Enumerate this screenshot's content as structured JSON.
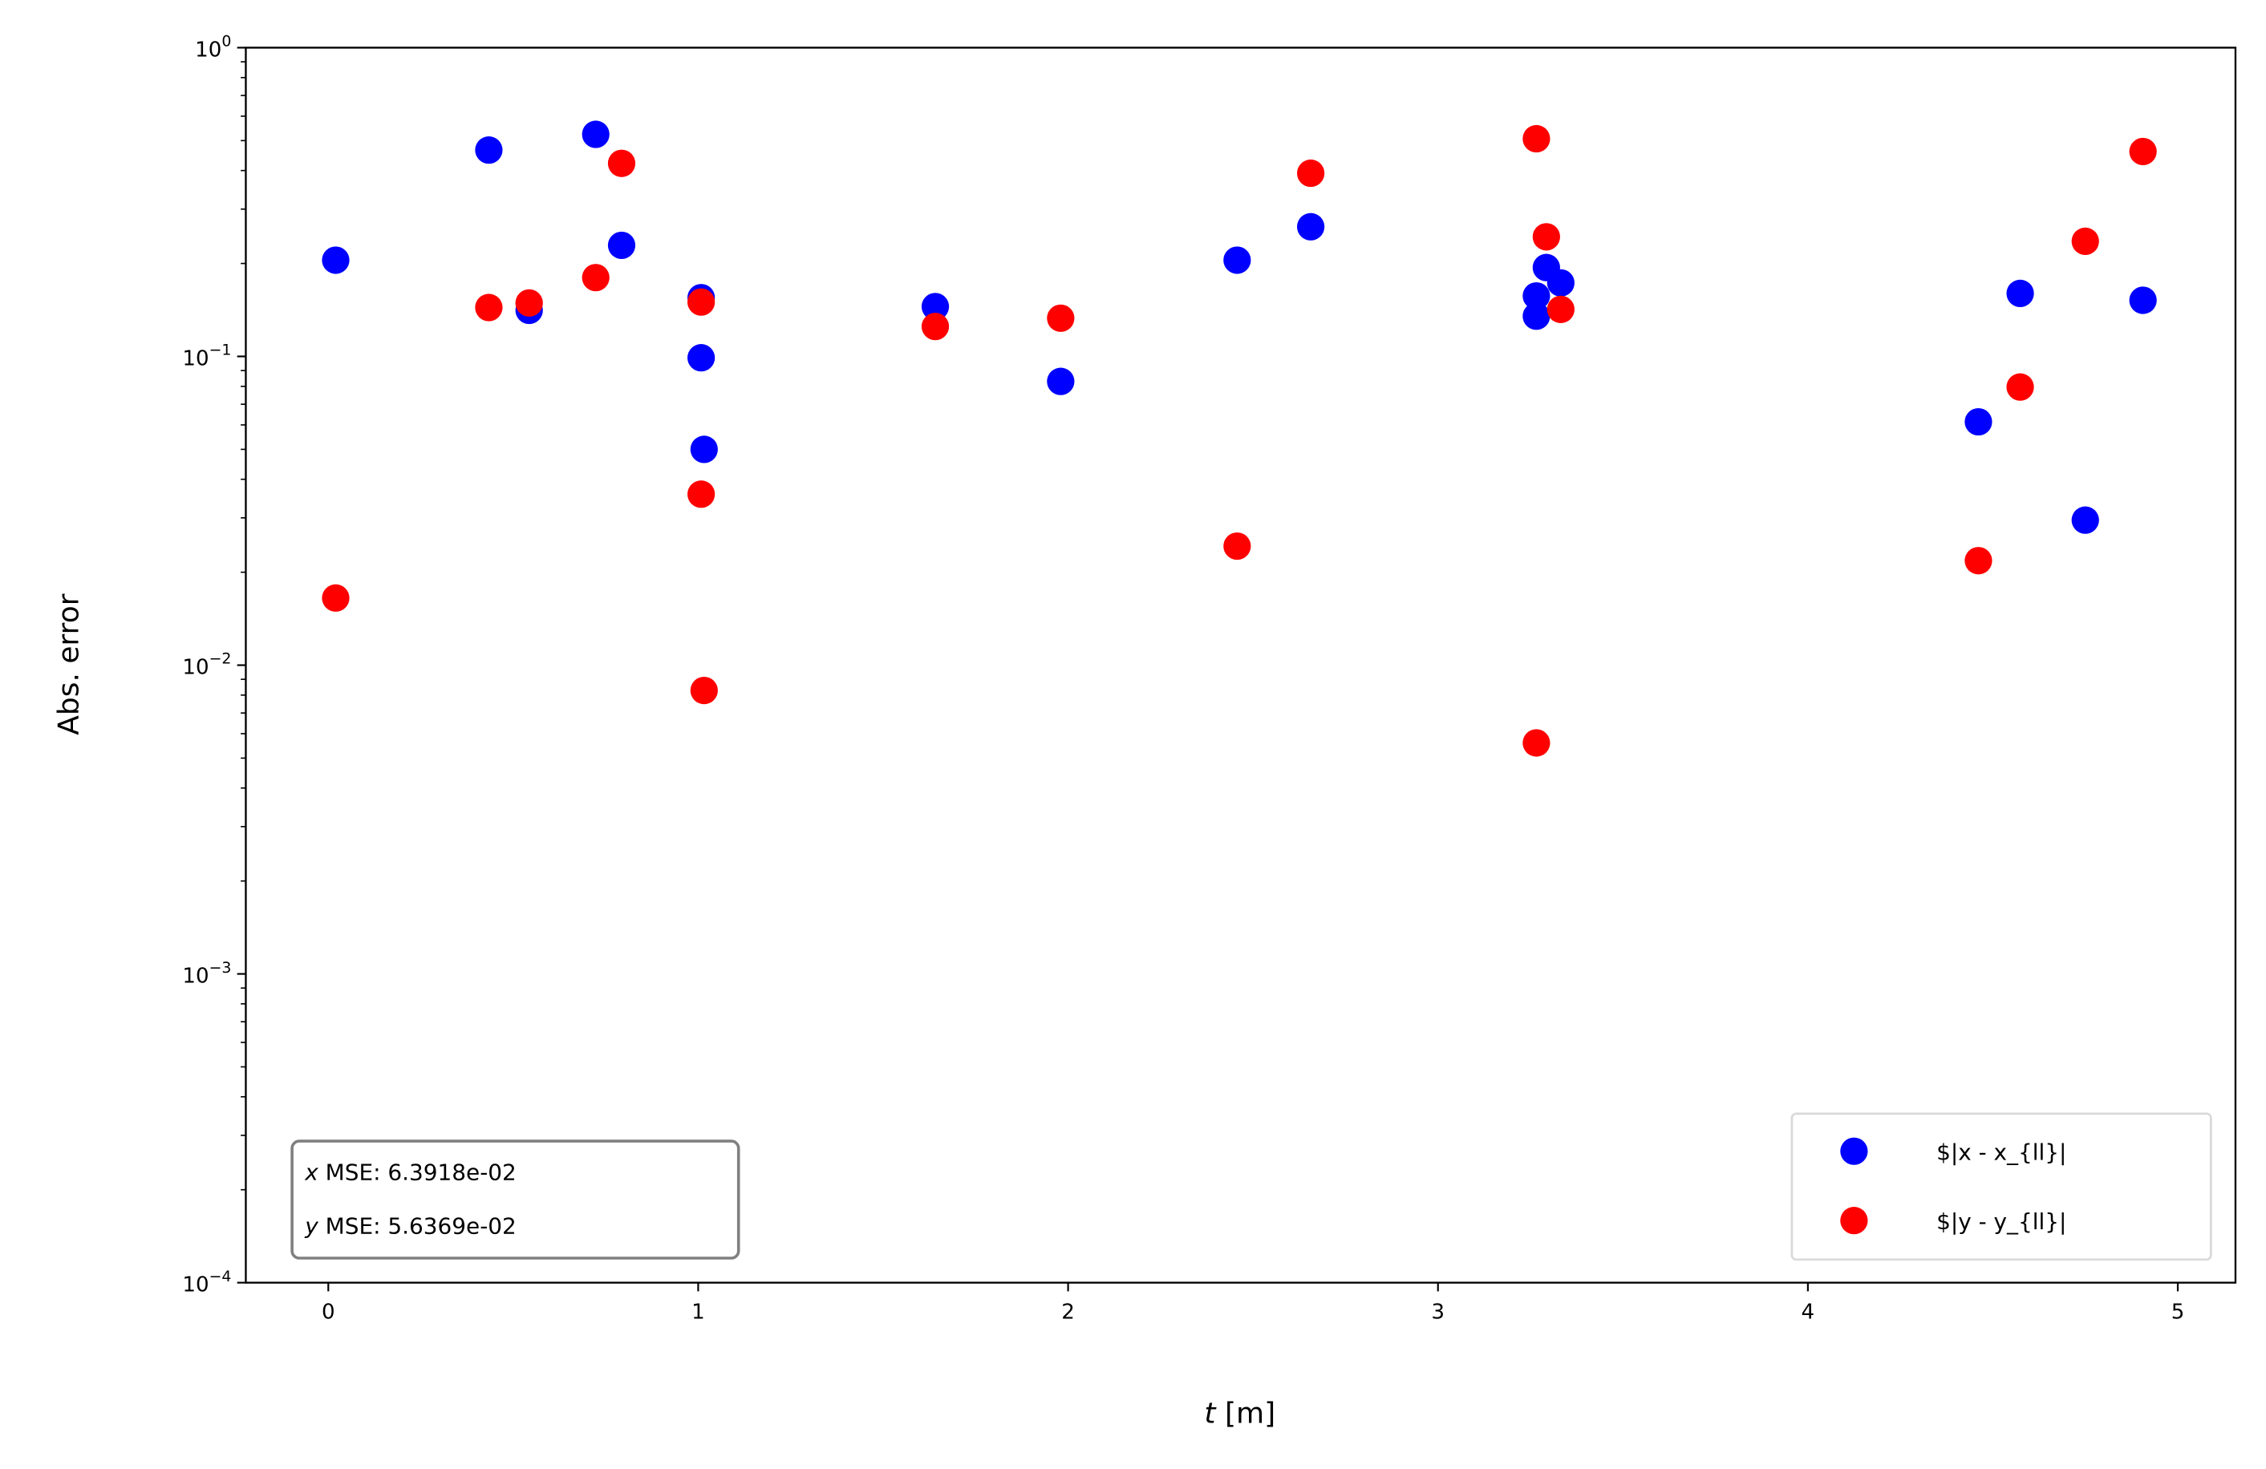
{
  "chart_data": {
    "type": "scatter",
    "title": "",
    "xlabel_var": "t",
    "xlabel_unit": " [m]",
    "ylabel": "Abs. error",
    "xlim": [
      -0.223,
      5.156
    ],
    "ylim": [
      0.0001,
      1
    ],
    "yscale": "log",
    "grid": false,
    "x_ticks": [
      "0",
      "1",
      "2",
      "3",
      "4",
      "5"
    ],
    "y_ticks": [
      {
        "base": "10",
        "exp": "0"
      },
      {
        "base": "10",
        "exp": "−1"
      },
      {
        "base": "10",
        "exp": "−2"
      },
      {
        "base": "10",
        "exp": "−3"
      },
      {
        "base": "10",
        "exp": "−4"
      }
    ],
    "legend_position": "lower-right",
    "series": [
      {
        "name": "$|x - x_{ll}|",
        "color": "#0000ff",
        "x": [
          0.02,
          0.434,
          0.543,
          0.723,
          0.793,
          1.008,
          1.008,
          1.016,
          1.641,
          1.98,
          2.457,
          2.656,
          3.266,
          3.266,
          3.293,
          3.332,
          4.461,
          4.574,
          4.75,
          4.906
        ],
        "y": [
          0.205,
          0.466,
          0.141,
          0.524,
          0.229,
          0.155,
          0.099,
          0.05,
          0.145,
          0.083,
          0.205,
          0.263,
          0.157,
          0.135,
          0.194,
          0.173,
          0.0614,
          0.16,
          0.0295,
          0.152
        ]
      },
      {
        "name": "$|y - y_{ll}|",
        "color": "#ff0000",
        "x": [
          0.02,
          0.434,
          0.543,
          0.723,
          0.793,
          1.008,
          1.008,
          1.016,
          1.641,
          1.98,
          2.457,
          2.656,
          3.266,
          3.266,
          3.293,
          3.332,
          4.461,
          4.574,
          4.75,
          4.906
        ],
        "y": [
          0.0165,
          0.144,
          0.149,
          0.18,
          0.422,
          0.15,
          0.0358,
          0.00828,
          0.125,
          0.133,
          0.0243,
          0.392,
          0.507,
          0.0056,
          0.244,
          0.142,
          0.0218,
          0.0796,
          0.236,
          0.461
        ]
      }
    ],
    "annotation": {
      "line1_var": "x",
      "line1_text": " MSE: 6.3918e-02",
      "line2_var": "y",
      "line2_text": " MSE: 5.6369e-02"
    }
  }
}
